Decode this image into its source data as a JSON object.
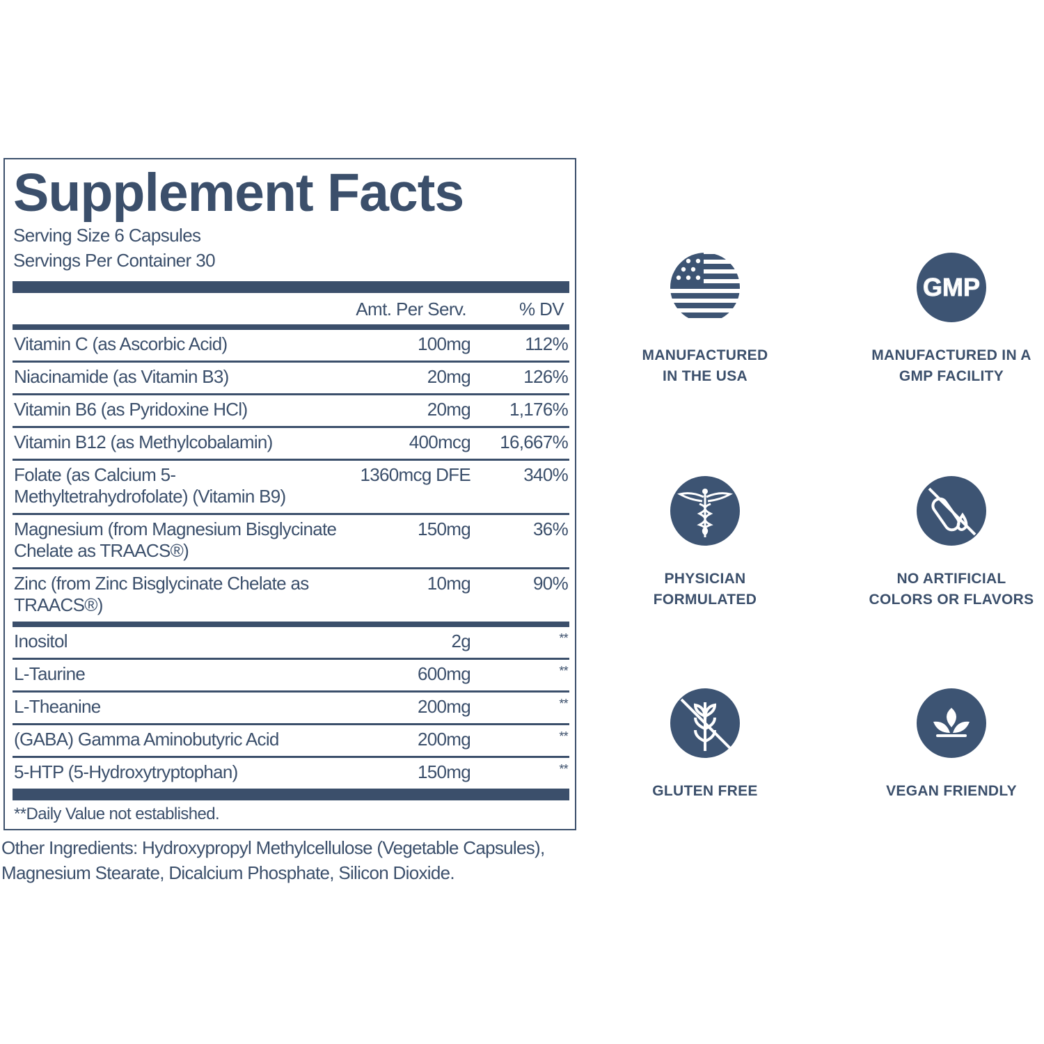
{
  "panel": {
    "title": "Supplement Facts",
    "serving_size": "Serving Size 6 Capsules",
    "servings_per_container": "Servings Per Container 30",
    "columns": [
      "Amt. Per Serv.",
      "% DV"
    ],
    "sections": [
      [
        {
          "name": "Vitamin C (as Ascorbic Acid)",
          "amount": "100mg",
          "dv": "112%"
        },
        {
          "name": "Niacinamide (as Vitamin B3)",
          "amount": "20mg",
          "dv": "126%"
        },
        {
          "name": "Vitamin B6 (as Pyridoxine HCl)",
          "amount": "20mg",
          "dv": "1,176%"
        },
        {
          "name": "Vitamin B12 (as Methylcobalamin)",
          "amount": "400mcg",
          "dv": "16,667%"
        },
        {
          "name": "Folate (as Calcium 5-Methyltetrahydrofolate) (Vitamin B9)",
          "amount": "1360mcg DFE",
          "dv": "340%"
        },
        {
          "name": "Magnesium (from Magnesium Bisglycinate Chelate as TRAACS®)",
          "amount": "150mg",
          "dv": "36%"
        },
        {
          "name": "Zinc (from Zinc Bisglycinate Chelate as TRAACS®)",
          "amount": "10mg",
          "dv": "90%"
        }
      ],
      [
        {
          "name": "Inositol",
          "amount": "2g",
          "dv": "**"
        },
        {
          "name": "L-Taurine",
          "amount": "600mg",
          "dv": "**"
        },
        {
          "name": "L-Theanine",
          "amount": "200mg",
          "dv": "**"
        },
        {
          "name": "(GABA) Gamma Aminobutyric Acid",
          "amount": "200mg",
          "dv": "**"
        },
        {
          "name": "5-HTP (5-Hydroxytryptophan)",
          "amount": "150mg",
          "dv": "**"
        }
      ]
    ],
    "footnote": "**Daily Value not established."
  },
  "other_ingredients": "Other Ingredients: Hydroxypropyl Methylcellulose (Vegetable Capsules), Magnesium Stearate, Dicalcium Phosphate, Silicon Dioxide.",
  "badges": [
    {
      "icon": "flag",
      "lines": [
        "MANUFACTURED",
        "IN THE USA"
      ]
    },
    {
      "icon": "GMP",
      "lines": [
        "MANUFACTURED IN A",
        "GMP FACILITY"
      ]
    },
    {
      "icon": "caduceus",
      "lines": [
        "PHYSICIAN",
        "FORMULATED"
      ]
    },
    {
      "icon": "no-artificial",
      "lines": [
        "NO ARTIFICIAL",
        "COLORS OR FLAVORS"
      ]
    },
    {
      "icon": "wheat",
      "lines": [
        "GLUTEN FREE"
      ]
    },
    {
      "icon": "leaf",
      "lines": [
        "VEGAN FRIENDLY"
      ]
    }
  ]
}
